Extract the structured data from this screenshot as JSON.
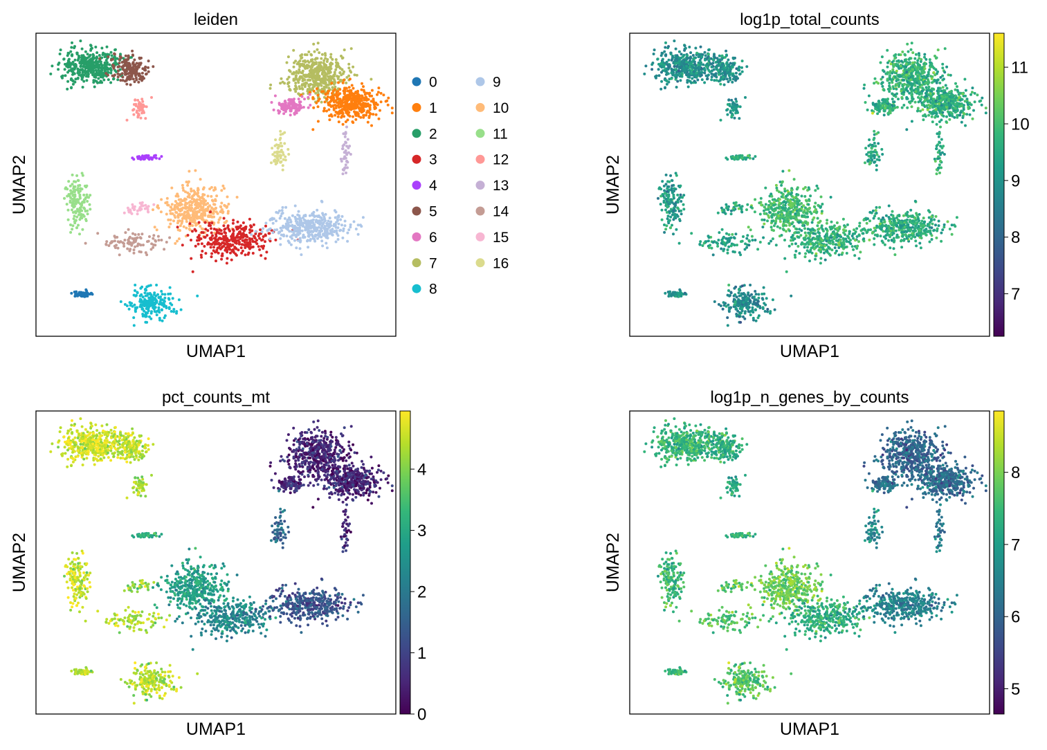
{
  "chart_data": [
    {
      "type": "scatter",
      "title": "leiden",
      "xlabel": "UMAP1",
      "ylabel": "UMAP2",
      "grid": false,
      "legend": "right",
      "color_mode": "categorical",
      "categories": [
        {
          "name": "0",
          "color": "#1f77b4"
        },
        {
          "name": "1",
          "color": "#ff7f0e"
        },
        {
          "name": "2",
          "color": "#279e68"
        },
        {
          "name": "3",
          "color": "#d62728"
        },
        {
          "name": "4",
          "color": "#aa40fc"
        },
        {
          "name": "5",
          "color": "#8c564b"
        },
        {
          "name": "6",
          "color": "#e377c2"
        },
        {
          "name": "7",
          "color": "#b5bd61"
        },
        {
          "name": "8",
          "color": "#17becf"
        },
        {
          "name": "9",
          "color": "#aec7e8"
        },
        {
          "name": "10",
          "color": "#ffbb78"
        },
        {
          "name": "11",
          "color": "#98df8a"
        },
        {
          "name": "12",
          "color": "#ff9896"
        },
        {
          "name": "13",
          "color": "#c5b0d5"
        },
        {
          "name": "14",
          "color": "#c49c94"
        },
        {
          "name": "15",
          "color": "#f7b6d2"
        },
        {
          "name": "16",
          "color": "#dbdb8d"
        }
      ]
    },
    {
      "type": "scatter",
      "title": "log1p_total_counts",
      "xlabel": "UMAP1",
      "ylabel": "UMAP2",
      "grid": false,
      "color_mode": "continuous",
      "colormap": "viridis",
      "colorbar_range": [
        6.25,
        11.6
      ],
      "colorbar_ticks": [
        7,
        8,
        9,
        10,
        11
      ]
    },
    {
      "type": "scatter",
      "title": "pct_counts_mt",
      "xlabel": "UMAP1",
      "ylabel": "UMAP2",
      "grid": false,
      "color_mode": "continuous",
      "colormap": "viridis",
      "colorbar_range": [
        0,
        4.95
      ],
      "colorbar_ticks": [
        0,
        1,
        2,
        3,
        4
      ]
    },
    {
      "type": "scatter",
      "title": "log1p_n_genes_by_counts",
      "xlabel": "UMAP1",
      "ylabel": "UMAP2",
      "grid": false,
      "color_mode": "continuous",
      "colormap": "viridis",
      "colorbar_range": [
        4.65,
        8.85
      ],
      "colorbar_ticks": [
        5,
        6,
        7,
        8
      ]
    }
  ],
  "colors": {
    "viridis": [
      "#440154",
      "#482878",
      "#3e4989",
      "#31688e",
      "#26828e",
      "#1f9e89",
      "#35b779",
      "#6ece58",
      "#b5de2b",
      "#fde725"
    ]
  }
}
